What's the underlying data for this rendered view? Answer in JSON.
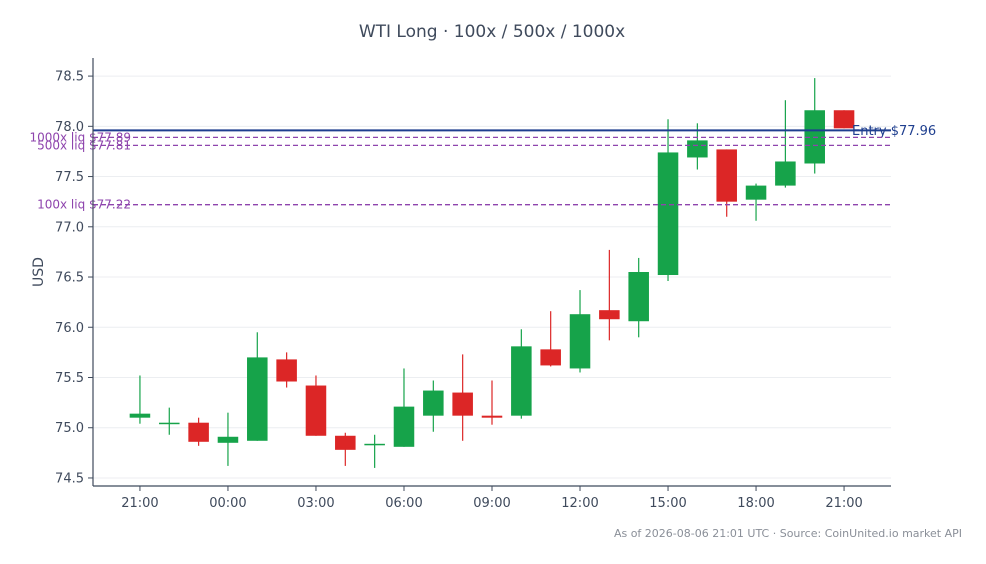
{
  "chart_data": {
    "type": "candlestick",
    "title": "WTI Long · 100x / 500x / 1000x",
    "ylabel": "USD",
    "xlabel": "",
    "ylim": [
      74.42,
      78.68
    ],
    "yticks": [
      74.5,
      75.0,
      75.5,
      76.0,
      76.5,
      77.0,
      77.5,
      78.0,
      78.5
    ],
    "ytick_labels": [
      "74.5",
      "75.0",
      "75.5",
      "76.0",
      "76.5",
      "77.0",
      "77.5",
      "78.0",
      "78.5"
    ],
    "x_range": [
      19.4,
      22.5
    ],
    "xticks": [
      {
        "pos": 21,
        "label": "21:00"
      },
      {
        "pos": 24,
        "label": "00:00"
      },
      {
        "pos": 27,
        "label": "03:00"
      },
      {
        "pos": 30,
        "label": "06:00"
      },
      {
        "pos": 33,
        "label": "09:00"
      },
      {
        "pos": 36,
        "label": "12:00"
      },
      {
        "pos": 39,
        "label": "15:00"
      },
      {
        "pos": 42,
        "label": "18:00"
      },
      {
        "pos": 45,
        "label": "21:00"
      }
    ],
    "candles": [
      {
        "t": 21,
        "open": 75.1,
        "high": 75.52,
        "low": 75.04,
        "close": 75.14
      },
      {
        "t": 22,
        "open": 75.04,
        "high": 75.2,
        "low": 74.93,
        "close": 75.05
      },
      {
        "t": 23,
        "open": 75.05,
        "high": 75.1,
        "low": 74.82,
        "close": 74.86
      },
      {
        "t": 24,
        "open": 74.85,
        "high": 75.15,
        "low": 74.62,
        "close": 74.91
      },
      {
        "t": 25,
        "open": 74.87,
        "high": 75.95,
        "low": 74.87,
        "close": 75.7
      },
      {
        "t": 26,
        "open": 75.68,
        "high": 75.75,
        "low": 75.4,
        "close": 75.46
      },
      {
        "t": 27,
        "open": 75.42,
        "high": 75.52,
        "low": 74.92,
        "close": 74.92
      },
      {
        "t": 28,
        "open": 74.92,
        "high": 74.95,
        "low": 74.62,
        "close": 74.78
      },
      {
        "t": 29,
        "open": 74.83,
        "high": 74.93,
        "low": 74.6,
        "close": 74.84
      },
      {
        "t": 30,
        "open": 74.81,
        "high": 75.59,
        "low": 74.81,
        "close": 75.21
      },
      {
        "t": 31,
        "open": 75.12,
        "high": 75.47,
        "low": 74.96,
        "close": 75.37
      },
      {
        "t": 32,
        "open": 75.35,
        "high": 75.73,
        "low": 74.87,
        "close": 75.12
      },
      {
        "t": 33,
        "open": 75.12,
        "high": 75.47,
        "low": 75.03,
        "close": 75.1
      },
      {
        "t": 34,
        "open": 75.12,
        "high": 75.98,
        "low": 75.09,
        "close": 75.81
      },
      {
        "t": 35,
        "open": 75.78,
        "high": 76.16,
        "low": 75.61,
        "close": 75.62
      },
      {
        "t": 36,
        "open": 75.59,
        "high": 76.37,
        "low": 75.55,
        "close": 76.13
      },
      {
        "t": 37,
        "open": 76.17,
        "high": 76.77,
        "low": 75.87,
        "close": 76.08
      },
      {
        "t": 38,
        "open": 76.06,
        "high": 76.69,
        "low": 75.9,
        "close": 76.55
      },
      {
        "t": 39,
        "open": 76.52,
        "high": 78.07,
        "low": 76.46,
        "close": 77.74
      },
      {
        "t": 40,
        "open": 77.69,
        "high": 78.03,
        "low": 77.57,
        "close": 77.86
      },
      {
        "t": 41,
        "open": 77.77,
        "high": 77.77,
        "low": 77.1,
        "close": 77.25
      },
      {
        "t": 42,
        "open": 77.27,
        "high": 77.43,
        "low": 77.06,
        "close": 77.41
      },
      {
        "t": 43,
        "open": 77.41,
        "high": 78.26,
        "low": 77.39,
        "close": 77.65
      },
      {
        "t": 44,
        "open": 77.63,
        "high": 78.48,
        "low": 77.53,
        "close": 78.16
      },
      {
        "t": 45,
        "open": 78.16,
        "high": 78.16,
        "low": 77.98,
        "close": 77.98
      }
    ],
    "levels": [
      {
        "name": "entry",
        "label": "Entry $77.96",
        "value": 77.96,
        "color": "#1f3f8f",
        "style": "solid"
      },
      {
        "name": "liq-1000x",
        "label": "1000x liq $77.89",
        "value": 77.89,
        "color": "#8e44ad",
        "style": "dashed"
      },
      {
        "name": "liq-500x",
        "label": "500x liq $77.81",
        "value": 77.81,
        "color": "#8e44ad",
        "style": "dashed"
      },
      {
        "name": "liq-100x",
        "label": "100x liq $77.22",
        "value": 77.22,
        "color": "#8e44ad",
        "style": "dashed"
      }
    ],
    "colors": {
      "up": "#16a34a",
      "down": "#dc2626",
      "axis": "#3f4a5c",
      "grid": "#eceef1"
    },
    "grid": true
  },
  "footer": "As of 2026-08-06 21:01 UTC · Source: CoinUnited.io market API"
}
